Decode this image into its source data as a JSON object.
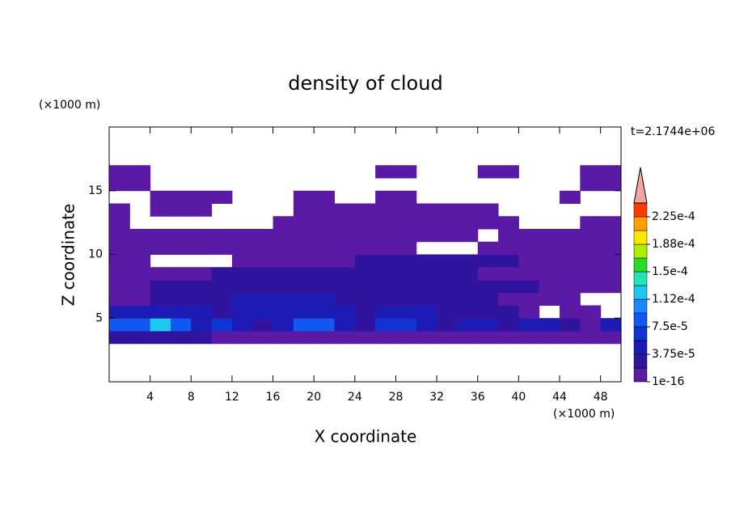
{
  "chart_data": {
    "type": "contour",
    "title": "density of cloud",
    "xlabel": "X coordinate",
    "ylabel": "Z coordinate",
    "xunit": "(×1000 m)",
    "yunit": "(×1000 m)",
    "annotation": "t=2.1744e+06",
    "xlim": [
      0,
      50
    ],
    "ylim": [
      0,
      20
    ],
    "xticks": [
      4,
      8,
      12,
      16,
      20,
      24,
      28,
      32,
      36,
      40,
      44,
      48
    ],
    "yticks": [
      5,
      10,
      15
    ],
    "x": [
      1,
      3,
      5,
      7,
      9,
      11,
      13,
      15,
      17,
      19,
      21,
      23,
      25,
      27,
      29,
      31,
      33,
      35,
      37,
      39,
      41,
      43,
      45,
      47,
      49
    ],
    "y": [
      3.5,
      4.5,
      5.5,
      6.5,
      7.5,
      8.5,
      9.5,
      10.5,
      11.5,
      12.5,
      13.5,
      14.5,
      15.5,
      16.5
    ],
    "z": [
      [
        1.875e-05,
        1.875e-05,
        1.875e-05,
        1.875e-05,
        1.875e-05,
        1e-16,
        1e-16,
        1e-16,
        1e-16,
        1e-16,
        1e-16,
        1e-16,
        1e-16,
        1e-16,
        1e-16,
        1e-16,
        1e-16,
        1e-16,
        1e-16,
        1e-16,
        1e-16,
        1e-16,
        1e-16,
        1e-16,
        1e-16
      ],
      [
        7.5e-05,
        7.5e-05,
        0.0001125,
        7.5e-05,
        3.75e-05,
        5.625e-05,
        3.75e-05,
        1.875e-05,
        3.75e-05,
        7.5e-05,
        7.5e-05,
        3.75e-05,
        1.875e-05,
        5.625e-05,
        5.625e-05,
        3.75e-05,
        1.875e-05,
        3.75e-05,
        3.75e-05,
        1.875e-05,
        3.75e-05,
        3.75e-05,
        1.875e-05,
        1e-16,
        3.75e-05
      ],
      [
        3.75e-05,
        3.75e-05,
        3.75e-05,
        3.75e-05,
        3.75e-05,
        1.875e-05,
        3.75e-05,
        3.75e-05,
        3.75e-05,
        3.75e-05,
        3.75e-05,
        3.75e-05,
        1.875e-05,
        3.75e-05,
        3.75e-05,
        3.75e-05,
        1.875e-05,
        1.875e-05,
        1.875e-05,
        1.875e-05,
        1e-16,
        null,
        1e-16,
        1e-16,
        null
      ],
      [
        1e-16,
        1e-16,
        1.875e-05,
        1.875e-05,
        1.875e-05,
        1.875e-05,
        3.75e-05,
        3.75e-05,
        3.75e-05,
        3.75e-05,
        3.75e-05,
        1.875e-05,
        1.875e-05,
        1.875e-05,
        1.875e-05,
        1.875e-05,
        1.875e-05,
        1.875e-05,
        1.875e-05,
        1e-16,
        1e-16,
        1e-16,
        1e-16,
        null,
        null
      ],
      [
        1e-16,
        1e-16,
        1.875e-05,
        1.875e-05,
        1.875e-05,
        1.875e-05,
        1.875e-05,
        1.875e-05,
        1.875e-05,
        1.875e-05,
        1.875e-05,
        1.875e-05,
        1.875e-05,
        1.875e-05,
        1.875e-05,
        1.875e-05,
        1.875e-05,
        1.875e-05,
        1.875e-05,
        1.875e-05,
        1.875e-05,
        1e-16,
        1e-16,
        1e-16,
        1e-16
      ],
      [
        1e-16,
        1e-16,
        1e-16,
        1e-16,
        1e-16,
        1.875e-05,
        1.875e-05,
        1.875e-05,
        1.875e-05,
        1.875e-05,
        1.875e-05,
        1.875e-05,
        1.875e-05,
        1.875e-05,
        1.875e-05,
        1.875e-05,
        1.875e-05,
        1.875e-05,
        1e-16,
        1e-16,
        1e-16,
        1e-16,
        1e-16,
        1e-16,
        1e-16
      ],
      [
        1e-16,
        1e-16,
        null,
        null,
        null,
        null,
        1e-16,
        1e-16,
        1e-16,
        1e-16,
        1e-16,
        1e-16,
        1.875e-05,
        1.875e-05,
        1.875e-05,
        1.875e-05,
        1.875e-05,
        1.875e-05,
        1.875e-05,
        1.875e-05,
        1e-16,
        1e-16,
        1e-16,
        1e-16,
        1e-16
      ],
      [
        1e-16,
        1e-16,
        1e-16,
        1e-16,
        1e-16,
        1e-16,
        1e-16,
        1e-16,
        1e-16,
        1e-16,
        1e-16,
        1e-16,
        1e-16,
        1e-16,
        1e-16,
        null,
        null,
        null,
        1e-16,
        1e-16,
        1e-16,
        1e-16,
        1e-16,
        1e-16,
        1e-16
      ],
      [
        1e-16,
        1e-16,
        1e-16,
        1e-16,
        1e-16,
        1e-16,
        1e-16,
        1e-16,
        1e-16,
        1e-16,
        1e-16,
        1e-16,
        1e-16,
        1e-16,
        1e-16,
        1e-16,
        1e-16,
        1e-16,
        null,
        1e-16,
        1e-16,
        1e-16,
        1e-16,
        1e-16,
        1e-16
      ],
      [
        1e-16,
        null,
        null,
        null,
        null,
        null,
        null,
        null,
        1e-16,
        1e-16,
        1e-16,
        1e-16,
        1e-16,
        1e-16,
        1e-16,
        1e-16,
        1e-16,
        1e-16,
        1e-16,
        1e-16,
        null,
        null,
        null,
        1e-16,
        1e-16
      ],
      [
        1e-16,
        null,
        1e-16,
        1e-16,
        1e-16,
        null,
        null,
        null,
        null,
        1e-16,
        1e-16,
        1e-16,
        1e-16,
        1e-16,
        1e-16,
        1e-16,
        1e-16,
        1e-16,
        1e-16,
        null,
        null,
        null,
        null,
        null,
        null
      ],
      [
        null,
        null,
        1e-16,
        1e-16,
        1e-16,
        1e-16,
        null,
        null,
        null,
        1e-16,
        1e-16,
        null,
        null,
        1e-16,
        1e-16,
        null,
        null,
        null,
        null,
        null,
        null,
        null,
        1e-16,
        null,
        null
      ],
      [
        1e-16,
        1e-16,
        null,
        null,
        null,
        null,
        null,
        null,
        null,
        null,
        null,
        null,
        null,
        null,
        null,
        null,
        null,
        null,
        null,
        null,
        null,
        null,
        null,
        1e-16,
        1e-16
      ],
      [
        1e-16,
        1e-16,
        null,
        null,
        null,
        null,
        null,
        null,
        null,
        null,
        null,
        null,
        null,
        1e-16,
        1e-16,
        null,
        null,
        null,
        1e-16,
        1e-16,
        null,
        null,
        null,
        1e-16,
        1e-16
      ]
    ],
    "levels": [
      1e-16,
      1.875e-05,
      3.75e-05,
      5.625e-05,
      7.5e-05,
      9.375e-05,
      0.0001125,
      0.00013125,
      0.00015,
      0.00016875,
      0.0001875,
      0.00020625,
      0.000225
    ],
    "colors": [
      "#5a1aa6",
      "#30149e",
      "#1c1cb4",
      "#1034d2",
      "#1058f0",
      "#1a86ff",
      "#1ec8f0",
      "#1ee6b4",
      "#28dc28",
      "#aaf000",
      "#ffe600",
      "#ffa000",
      "#ff3c00"
    ],
    "extend_color": "#f4a4a4",
    "colorbar_ticks": [
      {
        "value": 1e-16,
        "label": "1e-16"
      },
      {
        "value": 3.75e-05,
        "label": "3.75e-5"
      },
      {
        "value": 7.5e-05,
        "label": "7.5e-5"
      },
      {
        "value": 0.0001125,
        "label": "1.12e-4"
      },
      {
        "value": 0.00015,
        "label": "1.5e-4"
      },
      {
        "value": 0.0001875,
        "label": "1.88e-4"
      },
      {
        "value": 0.000225,
        "label": "2.25e-4"
      }
    ]
  }
}
